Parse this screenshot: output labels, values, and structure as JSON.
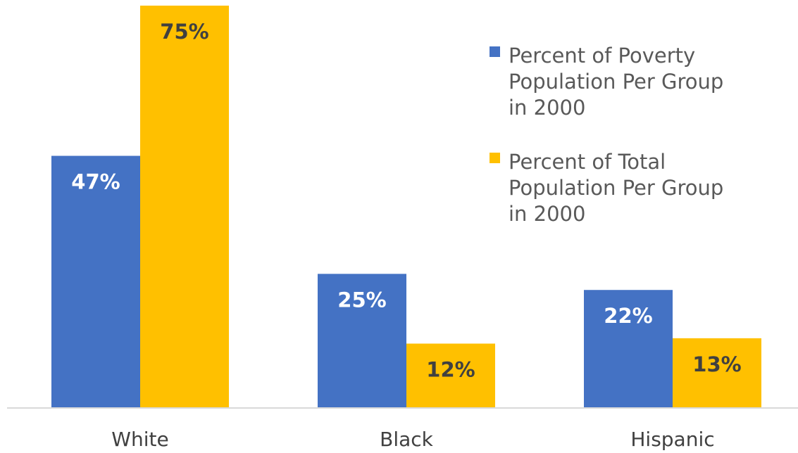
{
  "chart_data": {
    "type": "bar",
    "categories": [
      "White",
      "Black",
      "Hispanic"
    ],
    "series": [
      {
        "name": "Percent of Poverty Population Per Group in 2000",
        "values": [
          47,
          25,
          22
        ],
        "labels": [
          "47%",
          "25%",
          "22%"
        ],
        "color": "#4472C4",
        "label_color": "#ffffff"
      },
      {
        "name": "Percent of Total Population Per Group in 2000",
        "values": [
          75,
          12,
          13
        ],
        "labels": [
          "75%",
          "12%",
          "13%"
        ],
        "color": "#FFC000",
        "label_color": "#404040"
      }
    ],
    "ylim": [
      0,
      75
    ],
    "legend_position": "top-right",
    "grid": false,
    "title": "",
    "xlabel": "",
    "ylabel": ""
  }
}
